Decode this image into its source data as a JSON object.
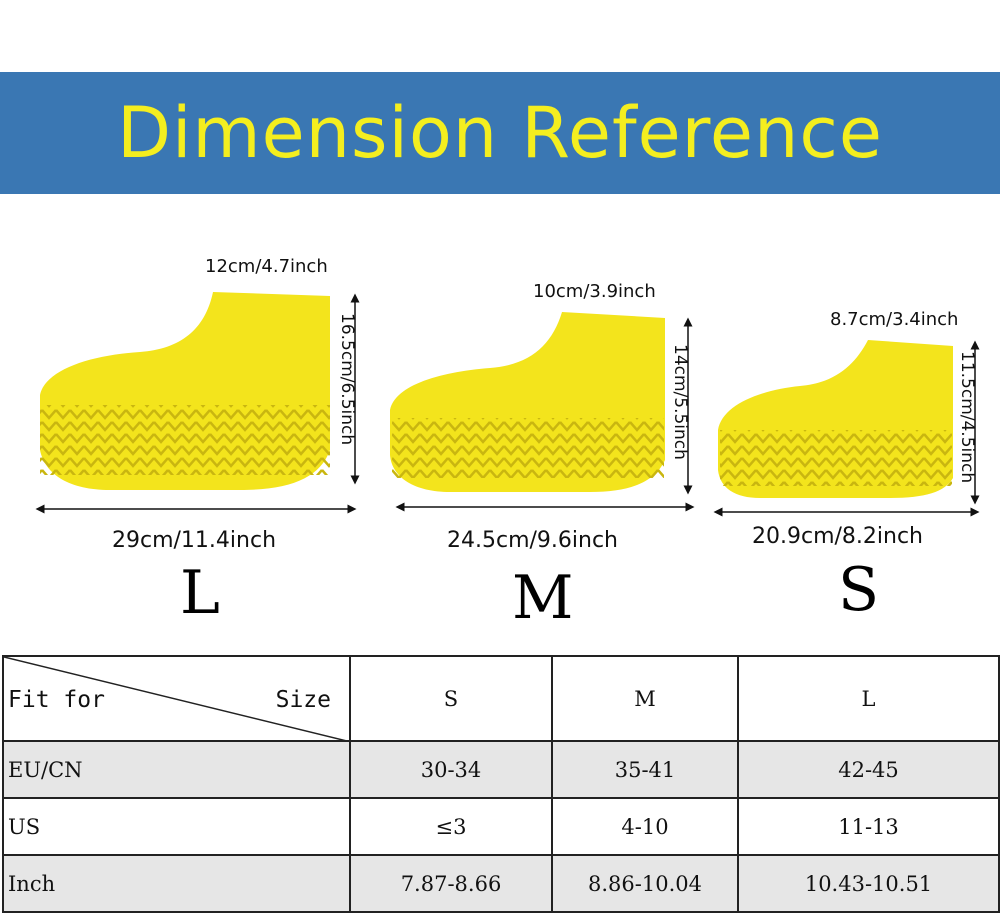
{
  "banner": {
    "title": "Dimension Reference",
    "bg_color": "#3a77b3",
    "text_color": "#f4ee1f"
  },
  "shoe_color": "#f3e41c",
  "shoes": [
    {
      "size": "L",
      "top": "12cm/4.7inch",
      "height": "16.5cm/6.5inch",
      "width": "29cm/11.4inch"
    },
    {
      "size": "M",
      "top": "10cm/3.9inch",
      "height": "14cm/5.5inch",
      "width": "24.5cm/9.6inch"
    },
    {
      "size": "S",
      "top": "8.7cm/3.4inch",
      "height": "11.5cm/4.5inch",
      "width": "20.9cm/8.2inch"
    }
  ],
  "table": {
    "corner": {
      "left": "Fit for",
      "right": "Size"
    },
    "columns": [
      "S",
      "M",
      "L"
    ],
    "rows": [
      {
        "label": "EU/CN",
        "values": [
          "30-34",
          "35-41",
          "42-45"
        ]
      },
      {
        "label": "US",
        "values": [
          "≤3",
          "4-10",
          "11-13"
        ]
      },
      {
        "label": "Inch",
        "values": [
          "7.87-8.66",
          "8.86-10.04",
          "10.43-10.51"
        ]
      }
    ]
  }
}
